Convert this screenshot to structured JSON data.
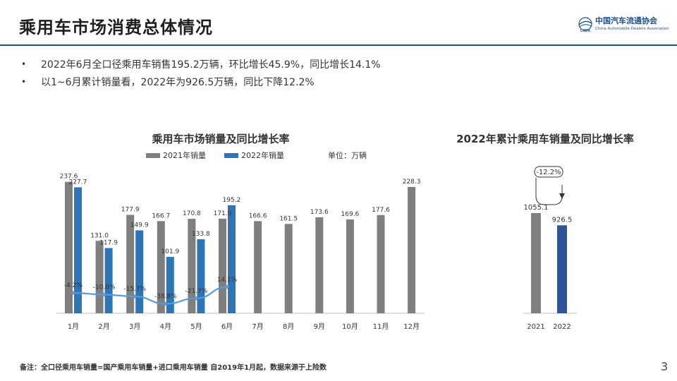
{
  "page": {
    "title": "乘用车市场消费总体情况",
    "page_number": "3",
    "footnote": "备注：全口径乘用车销量=国产乘用车销量+进口乘用车销量 自2019年1月起，数据来源于上险数"
  },
  "logo": {
    "name_cn": "中国汽车流通协会",
    "name_en": "China Automobile Dealers Association",
    "mark_text": "CADA"
  },
  "bullets": [
    "2022年6月全口径乘用车销售195.2万辆，环比增长45.9%，同比增长14.1%",
    "以1~6月累计销量看，2022年为926.5万辆，同比下降12.2%"
  ],
  "colors": {
    "series_2021": "#7f7f7f",
    "series_2022": "#2e75b6",
    "growth_line": "#5b9bd5",
    "cumulative_2022": "#2f5597",
    "brand": "#1f4e89"
  },
  "chart_data": [
    {
      "type": "bar",
      "title": "乘用车市场销量及同比增长率",
      "unit_label": "单位：万辆",
      "categories": [
        "1月",
        "2月",
        "3月",
        "4月",
        "5月",
        "6月",
        "7月",
        "8月",
        "9月",
        "10月",
        "11月",
        "12月"
      ],
      "series": [
        {
          "name": "2021年销量",
          "values": [
            237.6,
            131.0,
            177.9,
            166.7,
            170.8,
            171.0,
            166.6,
            161.5,
            173.6,
            169.6,
            177.6,
            228.3
          ]
        },
        {
          "name": "2022年销量",
          "values": [
            227.7,
            117.9,
            149.9,
            101.9,
            133.8,
            195.2,
            null,
            null,
            null,
            null,
            null,
            null
          ]
        }
      ],
      "growth_line": {
        "name": "同比增长率",
        "values": [
          -4.2,
          -10.0,
          -15.7,
          -38.8,
          -21.7,
          14.1
        ],
        "labels": [
          "-4.2%",
          "-10.0%",
          "-15.7%",
          "-38.8%",
          "-21.7%",
          "14.1%"
        ]
      },
      "ylim": [
        0,
        250
      ],
      "legend_position": "top"
    },
    {
      "type": "bar",
      "title": "2022年累计乘用车销量及同比增长率",
      "categories": [
        "2021",
        "2022"
      ],
      "values": [
        1055.1,
        926.5
      ],
      "change_label": "-12.2%",
      "ylim": [
        0,
        1500
      ]
    }
  ]
}
